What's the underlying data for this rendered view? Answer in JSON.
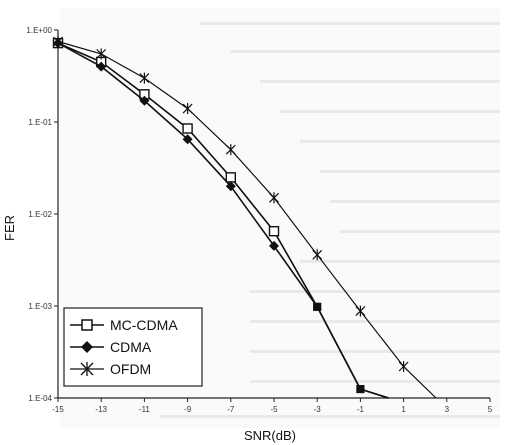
{
  "chart_data": {
    "type": "line",
    "title": "",
    "xlabel": "SNR(dB)",
    "ylabel": "FER",
    "xlim": [
      -15,
      5
    ],
    "ylim_log10": [
      -4,
      0
    ],
    "log_y": true,
    "grid": false,
    "legend_position": "bottom-left",
    "x_ticks": [
      -15,
      -13,
      -11,
      -9,
      -7,
      -5,
      -3,
      -1,
      1,
      3,
      5
    ],
    "x_tick_labels": [
      "-15",
      "-13",
      "-11",
      "-9",
      "-7",
      "-5",
      "-3",
      "-1",
      "1",
      "3",
      "5"
    ],
    "y_ticks": [
      1,
      0.1,
      0.01,
      0.001,
      0.0001
    ],
    "y_tick_labels": [
      "1.E+00",
      "1.E-01",
      "1.E-02",
      "1.E-03",
      "1.E-04"
    ],
    "series": [
      {
        "name": "MC-CDMA",
        "marker": "square-open",
        "x": [
          -15,
          -13,
          -11,
          -9,
          -7,
          -5,
          -3,
          -1,
          0.3
        ],
        "y": [
          0.72,
          0.45,
          0.2,
          0.085,
          0.025,
          0.0065,
          0.00098,
          0.000125,
          8e-05
        ]
      },
      {
        "name": "CDMA",
        "marker": "diamond-filled",
        "x": [
          -15,
          -13,
          -11,
          -9,
          -7,
          -5,
          -3,
          -1,
          0.3
        ],
        "y": [
          0.72,
          0.4,
          0.17,
          0.065,
          0.02,
          0.0045,
          0.00098,
          0.000125,
          8e-05
        ]
      },
      {
        "name": "OFDM",
        "marker": "asterisk",
        "x": [
          -15,
          -13,
          -11,
          -9,
          -7,
          -5,
          -3,
          -1,
          1,
          2.5
        ],
        "y": [
          0.75,
          0.55,
          0.3,
          0.14,
          0.05,
          0.015,
          0.0036,
          0.00088,
          0.00022,
          8e-05
        ]
      }
    ]
  }
}
